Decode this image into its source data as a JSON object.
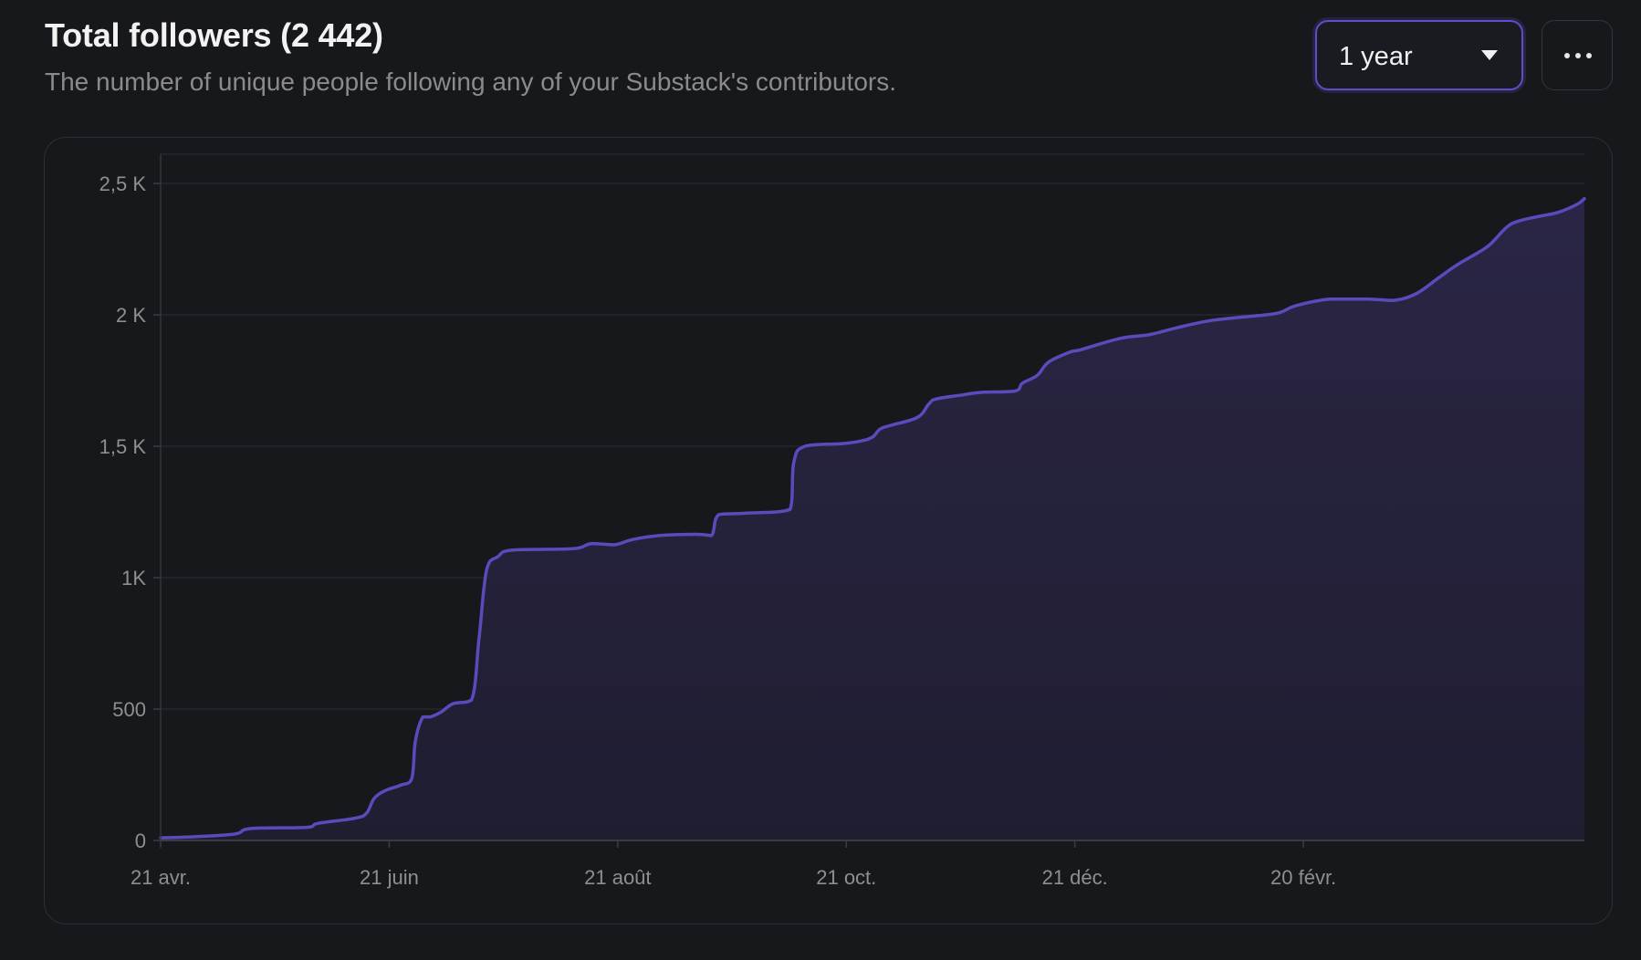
{
  "header": {
    "title": "Total followers (2 442)",
    "subtitle": "The number of unique people following any of your Substack's contributors."
  },
  "controls": {
    "range_selected": "1 year",
    "range_icon": "chevron-down-icon",
    "more_icon": "more-horizontal-icon"
  },
  "colors": {
    "background": "#17181b",
    "line": "#5a4bbd",
    "area": "#2a2545",
    "accent_border": "#5b4fc7"
  },
  "chart_data": {
    "type": "area",
    "title": "Total followers (2 442)",
    "xlabel": "",
    "ylabel": "",
    "ylim": [
      0,
      2500
    ],
    "grid": true,
    "legend": "none",
    "x_start": "2023-04-21",
    "x_ticks": [
      {
        "date": "2023-04-21",
        "label": "21 avr."
      },
      {
        "date": "2023-06-21",
        "label": "21 juin"
      },
      {
        "date": "2023-08-21",
        "label": "21 août"
      },
      {
        "date": "2023-10-21",
        "label": "21 oct."
      },
      {
        "date": "2023-12-21",
        "label": "21 déc."
      },
      {
        "date": "2024-02-20",
        "label": "20 févr."
      }
    ],
    "y_ticks": [
      {
        "value": 0,
        "label": "0"
      },
      {
        "value": 500,
        "label": "500"
      },
      {
        "value": 1000,
        "label": "1K"
      },
      {
        "value": 1500,
        "label": "1,5 K"
      },
      {
        "value": 2000,
        "label": "2 K"
      },
      {
        "value": 2500,
        "label": "2,5 K"
      }
    ],
    "series": [
      {
        "points": [
          [
            "2023-04-21",
            10
          ],
          [
            "2023-05-01",
            15
          ],
          [
            "2023-05-11",
            25
          ],
          [
            "2023-05-15",
            45
          ],
          [
            "2023-05-30",
            50
          ],
          [
            "2023-06-02",
            65
          ],
          [
            "2023-06-12",
            85
          ],
          [
            "2023-06-15",
            105
          ],
          [
            "2023-06-17",
            160
          ],
          [
            "2023-06-20",
            190
          ],
          [
            "2023-06-24",
            210
          ],
          [
            "2023-06-27",
            235
          ],
          [
            "2023-06-28",
            380
          ],
          [
            "2023-06-30",
            470
          ],
          [
            "2023-07-02",
            470
          ],
          [
            "2023-07-05",
            490
          ],
          [
            "2023-07-08",
            520
          ],
          [
            "2023-07-13",
            535
          ],
          [
            "2023-07-15",
            770
          ],
          [
            "2023-07-17",
            1030
          ],
          [
            "2023-07-20",
            1080
          ],
          [
            "2023-07-24",
            1105
          ],
          [
            "2023-08-09",
            1110
          ],
          [
            "2023-08-14",
            1130
          ],
          [
            "2023-08-20",
            1125
          ],
          [
            "2023-08-25",
            1145
          ],
          [
            "2023-09-01",
            1160
          ],
          [
            "2023-09-11",
            1165
          ],
          [
            "2023-09-15",
            1160
          ],
          [
            "2023-09-17",
            1240
          ],
          [
            "2023-09-24",
            1245
          ],
          [
            "2023-10-06",
            1260
          ],
          [
            "2023-10-07",
            1440
          ],
          [
            "2023-10-10",
            1500
          ],
          [
            "2023-10-20",
            1510
          ],
          [
            "2023-10-25",
            1520
          ],
          [
            "2023-10-28",
            1535
          ],
          [
            "2023-10-30",
            1565
          ],
          [
            "2023-11-02",
            1580
          ],
          [
            "2023-11-09",
            1610
          ],
          [
            "2023-11-12",
            1660
          ],
          [
            "2023-11-14",
            1680
          ],
          [
            "2023-11-21",
            1695
          ],
          [
            "2023-11-26",
            1705
          ],
          [
            "2023-12-05",
            1710
          ],
          [
            "2023-12-07",
            1740
          ],
          [
            "2023-12-11",
            1770
          ],
          [
            "2023-12-14",
            1820
          ],
          [
            "2023-12-20",
            1860
          ],
          [
            "2023-12-22",
            1865
          ],
          [
            "2024-01-02",
            1910
          ],
          [
            "2024-01-10",
            1925
          ],
          [
            "2024-01-17",
            1950
          ],
          [
            "2024-01-27",
            1980
          ],
          [
            "2024-02-10",
            2000
          ],
          [
            "2024-02-14",
            2010
          ],
          [
            "2024-02-18",
            2035
          ],
          [
            "2024-02-27",
            2060
          ],
          [
            "2024-03-08",
            2060
          ],
          [
            "2024-03-15",
            2055
          ],
          [
            "2024-03-21",
            2080
          ],
          [
            "2024-03-27",
            2140
          ],
          [
            "2024-04-01",
            2190
          ],
          [
            "2024-04-07",
            2240
          ],
          [
            "2024-04-10",
            2270
          ],
          [
            "2024-04-14",
            2330
          ],
          [
            "2024-04-17",
            2355
          ],
          [
            "2024-04-23",
            2375
          ],
          [
            "2024-04-28",
            2390
          ],
          [
            "2024-05-03",
            2420
          ],
          [
            "2024-05-05",
            2442
          ]
        ]
      }
    ]
  }
}
